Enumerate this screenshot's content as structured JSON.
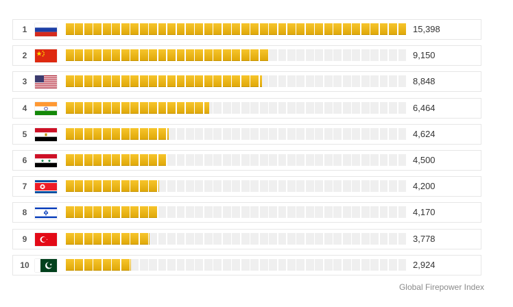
{
  "chart_data": {
    "type": "bar",
    "orientation": "horizontal",
    "categories": [
      "1",
      "2",
      "3",
      "4",
      "5",
      "6",
      "7",
      "8",
      "9",
      "10"
    ],
    "flags": [
      "russia-flag",
      "china-flag",
      "usa-flag",
      "india-flag",
      "egypt-flag",
      "syria-flag",
      "north-korea-flag",
      "israel-flag",
      "turkey-flag",
      "pakistan-flag"
    ],
    "values": [
      15398,
      9150,
      8848,
      6464,
      4624,
      4500,
      4200,
      4170,
      3778,
      2924
    ],
    "value_labels": [
      "15,398",
      "9,150",
      "8,848",
      "6,464",
      "4,624",
      "4,500",
      "4,200",
      "4,170",
      "3,778",
      "2,924"
    ],
    "xlim": [
      0,
      15398
    ],
    "bar_color": "#f2b705",
    "empty_color": "#efefef",
    "source": "Global Firepower Index"
  }
}
